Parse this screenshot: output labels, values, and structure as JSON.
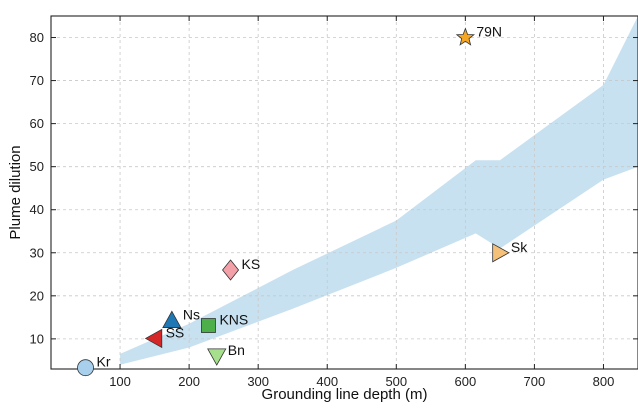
{
  "chart_data": {
    "type": "scatter",
    "xlabel": "Grounding line depth (m)",
    "ylabel": "Plume dilution",
    "xlim": [
      0,
      850
    ],
    "ylim": [
      3,
      85
    ],
    "xticks": [
      100,
      200,
      300,
      400,
      500,
      600,
      700,
      800
    ],
    "yticks": [
      10,
      20,
      30,
      40,
      50,
      60,
      70,
      80
    ],
    "grid": true,
    "band": {
      "color": "#c7e1f0",
      "upper": [
        [
          100,
          6.5
        ],
        [
          200,
          13.5
        ],
        [
          350,
          26
        ],
        [
          500,
          37.5
        ],
        [
          615,
          51.5
        ],
        [
          650,
          51.5
        ],
        [
          800,
          69
        ],
        [
          850,
          85
        ]
      ],
      "lower": [
        [
          100,
          4
        ],
        [
          200,
          8
        ],
        [
          350,
          17
        ],
        [
          500,
          26.5
        ],
        [
          615,
          34.5
        ],
        [
          650,
          31
        ],
        [
          800,
          47
        ],
        [
          850,
          50
        ]
      ]
    },
    "points": [
      {
        "name": "Kr",
        "x": 50,
        "y": 3.3,
        "marker": "circle",
        "color": "#a8d0ec",
        "label_color": "#111111"
      },
      {
        "name": "Ns",
        "x": 175,
        "y": 14.3,
        "marker": "triangle-up",
        "color": "#1f77b4",
        "label_color": "#111111"
      },
      {
        "name": "SS",
        "x": 150,
        "y": 10.1,
        "marker": "triangle-left",
        "color": "#d62728",
        "label_color": "#6e6e6e"
      },
      {
        "name": "KNS",
        "x": 228,
        "y": 13.1,
        "marker": "square",
        "color": "#4daf4a",
        "label_color": "#6e6e6e"
      },
      {
        "name": "Bn",
        "x": 240,
        "y": 6.0,
        "marker": "triangle-down",
        "color": "#a6e08c",
        "label_color": "#111111"
      },
      {
        "name": "KS",
        "x": 260,
        "y": 26.0,
        "marker": "diamond",
        "color": "#f4a0a8",
        "label_color": "#111111"
      },
      {
        "name": "Sk",
        "x": 650,
        "y": 30.0,
        "marker": "triangle-right",
        "color": "#f5c07a",
        "label_color": "#111111"
      },
      {
        "name": "79N",
        "x": 600,
        "y": 80.0,
        "marker": "star",
        "color": "#f5a623",
        "label_color": "#111111"
      }
    ]
  }
}
